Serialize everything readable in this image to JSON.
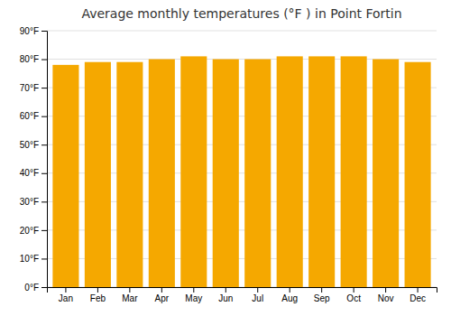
{
  "chart_data": {
    "type": "bar",
    "title": "Average monthly temperatures (°F ) in Point Fortin",
    "categories": [
      "Jan",
      "Feb",
      "Mar",
      "Apr",
      "May",
      "Jun",
      "Jul",
      "Aug",
      "Sep",
      "Oct",
      "Nov",
      "Dec"
    ],
    "values": [
      78,
      79,
      79,
      80,
      81,
      80,
      80,
      81,
      81,
      81,
      80,
      79
    ],
    "color": "#F5A800",
    "ylim": [
      0,
      90
    ],
    "yticks": [
      {
        "value": 0,
        "label": "0°F"
      },
      {
        "value": 10,
        "label": "10°F"
      },
      {
        "value": 20,
        "label": "20°F"
      },
      {
        "value": 30,
        "label": "30°F"
      },
      {
        "value": 40,
        "label": "40°F"
      },
      {
        "value": 50,
        "label": "50°F"
      },
      {
        "value": 60,
        "label": "60°F"
      },
      {
        "value": 70,
        "label": "70°F"
      },
      {
        "value": 80,
        "label": "80°F"
      },
      {
        "value": 90,
        "label": "90°F"
      }
    ],
    "grid": true
  }
}
